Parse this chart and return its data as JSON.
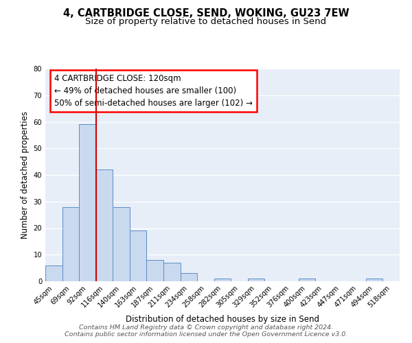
{
  "title": "4, CARTBRIDGE CLOSE, SEND, WOKING, GU23 7EW",
  "subtitle": "Size of property relative to detached houses in Send",
  "xlabel": "Distribution of detached houses by size in Send",
  "ylabel": "Number of detached properties",
  "bar_labels": [
    "45sqm",
    "69sqm",
    "92sqm",
    "116sqm",
    "140sqm",
    "163sqm",
    "187sqm",
    "211sqm",
    "234sqm",
    "258sqm",
    "282sqm",
    "305sqm",
    "329sqm",
    "352sqm",
    "376sqm",
    "400sqm",
    "423sqm",
    "447sqm",
    "471sqm",
    "494sqm",
    "518sqm"
  ],
  "bar_values": [
    6,
    28,
    59,
    42,
    28,
    19,
    8,
    7,
    3,
    0,
    1,
    0,
    1,
    0,
    0,
    1,
    0,
    0,
    0,
    1,
    0
  ],
  "bar_color": "#c9d9ee",
  "bar_edge_color": "#5b8dc8",
  "vline_x_index": 3,
  "vline_color": "#cc0000",
  "annotation_line1": "4 CARTBRIDGE CLOSE: 120sqm",
  "annotation_line2": "← 49% of detached houses are smaller (100)",
  "annotation_line3": "50% of semi-detached houses are larger (102) →",
  "ylim": [
    0,
    80
  ],
  "yticks": [
    0,
    10,
    20,
    30,
    40,
    50,
    60,
    70,
    80
  ],
  "background_color": "#ffffff",
  "plot_bg_color": "#e8eef8",
  "footer_text": "Contains HM Land Registry data © Crown copyright and database right 2024.\nContains public sector information licensed under the Open Government Licence v3.0.",
  "title_fontsize": 10.5,
  "subtitle_fontsize": 9.5,
  "axis_label_fontsize": 8.5,
  "tick_fontsize": 7.2,
  "annotation_fontsize": 8.5,
  "footer_fontsize": 6.8
}
